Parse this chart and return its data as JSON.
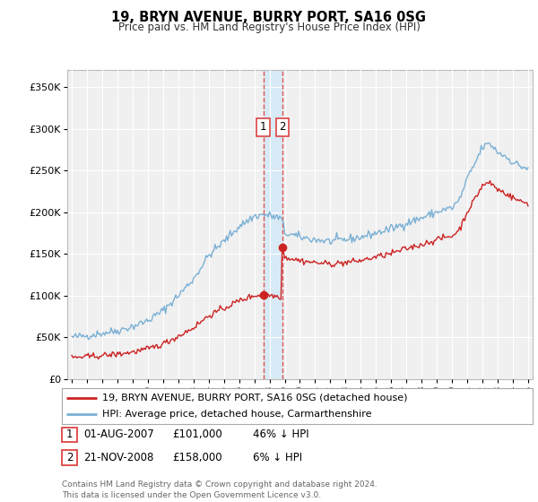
{
  "title": "19, BRYN AVENUE, BURRY PORT, SA16 0SG",
  "subtitle": "Price paid vs. HM Land Registry's House Price Index (HPI)",
  "legend_line1": "19, BRYN AVENUE, BURRY PORT, SA16 0SG (detached house)",
  "legend_line2": "HPI: Average price, detached house, Carmarthenshire",
  "transaction1_date": "01-AUG-2007",
  "transaction1_price": 101000,
  "transaction1_label": "46% ↓ HPI",
  "transaction2_date": "21-NOV-2008",
  "transaction2_price": 158000,
  "transaction2_label": "6% ↓ HPI",
  "footer": "Contains HM Land Registry data © Crown copyright and database right 2024.\nThis data is licensed under the Open Government Licence v3.0.",
  "hpi_color": "#7ab0d4",
  "price_color": "#cc2222",
  "vline_color": "#dd4444",
  "shade_color": "#d8eaf5",
  "background_color": "#ffffff",
  "plot_bg_color": "#f0f0f0",
  "grid_color": "#ffffff",
  "yticks": [
    0,
    50000,
    100000,
    150000,
    200000,
    250000,
    300000,
    350000
  ],
  "ytick_labels": [
    "£0",
    "£50K",
    "£100K",
    "£150K",
    "£200K",
    "£250K",
    "£300K",
    "£350K"
  ]
}
